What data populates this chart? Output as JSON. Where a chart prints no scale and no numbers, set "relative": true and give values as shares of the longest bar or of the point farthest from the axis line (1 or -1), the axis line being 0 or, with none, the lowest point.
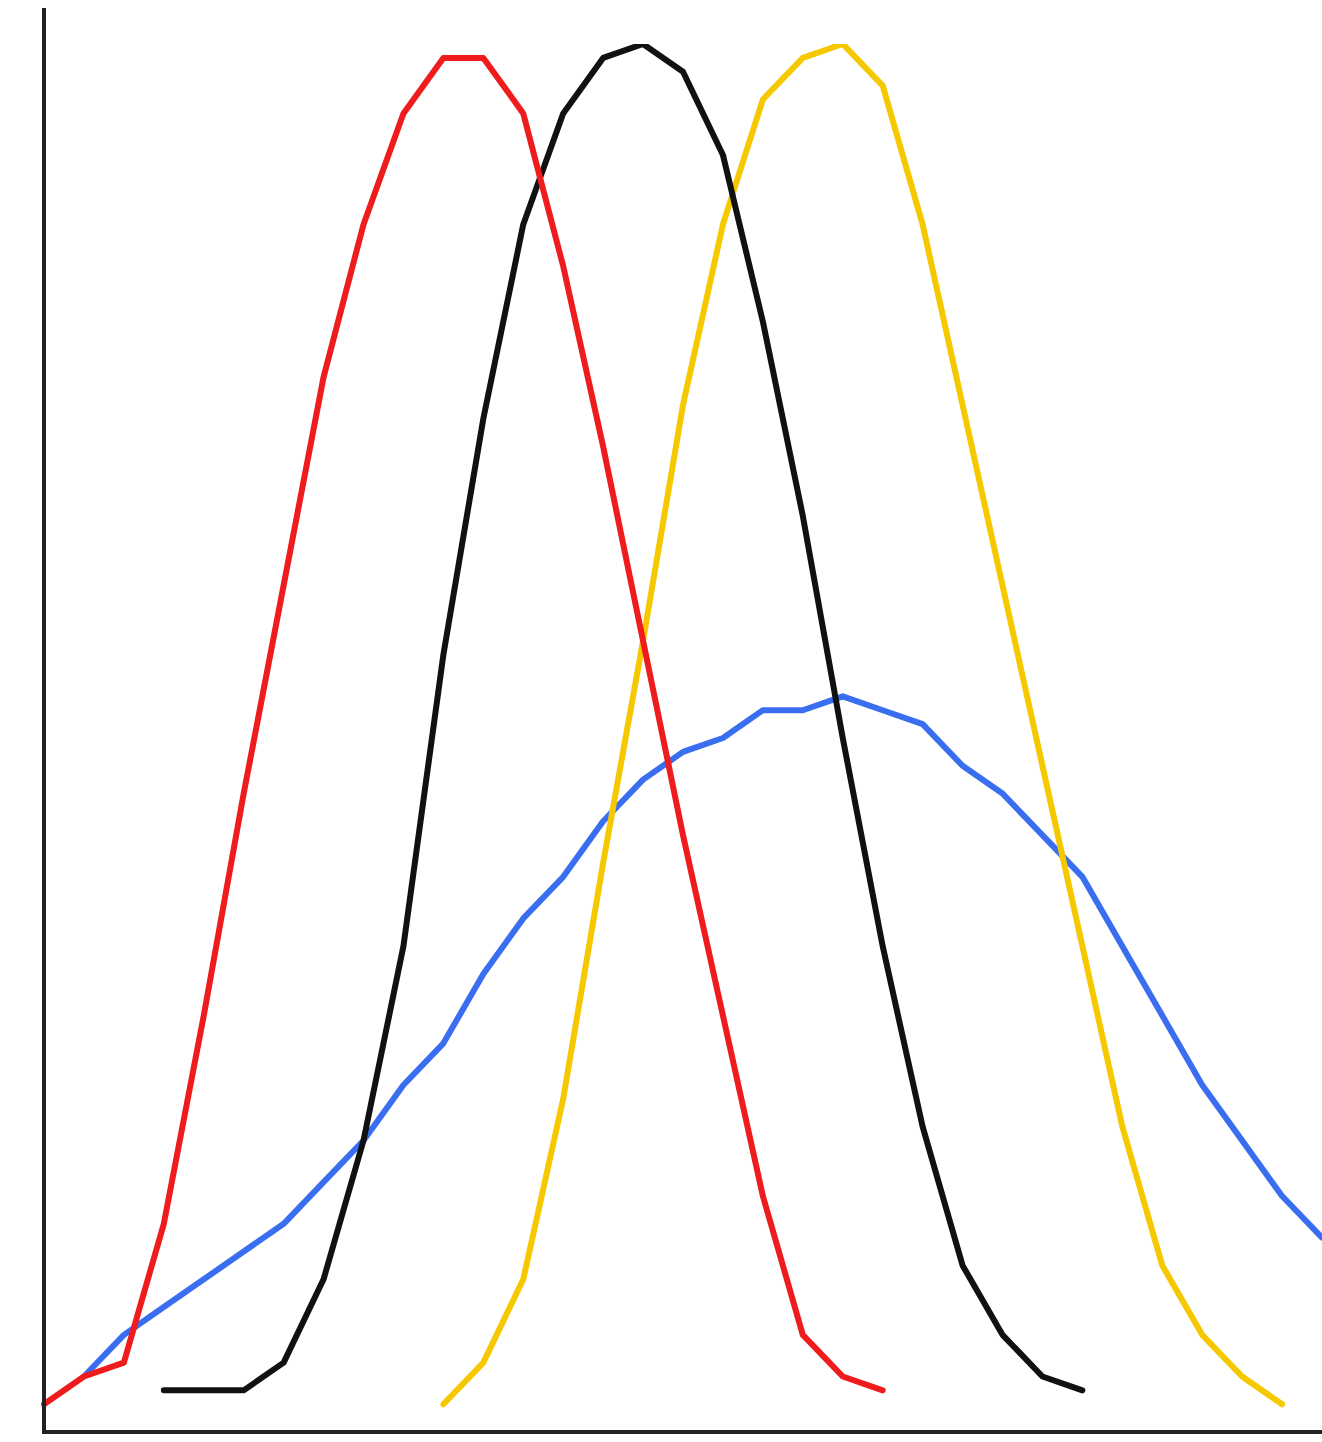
{
  "chart_data": {
    "type": "line",
    "relative": true,
    "marker": "none",
    "grid": false,
    "legend": false,
    "categories": [
      null,
      null,
      null,
      null,
      null,
      null,
      null,
      null,
      null,
      null,
      null,
      null,
      null,
      null,
      null,
      null,
      null,
      null,
      null,
      null,
      null,
      null,
      null,
      null,
      null,
      null,
      null,
      null,
      null,
      null,
      null,
      null,
      null
    ],
    "series": [
      {
        "color": "#ee1c1c",
        "values": [
          0.02,
          0.04,
          0.05,
          0.15,
          0.3,
          0.46,
          0.61,
          0.76,
          0.87,
          0.95,
          0.99,
          0.99,
          0.95,
          0.84,
          0.71,
          0.57,
          0.43,
          0.3,
          0.17,
          0.07,
          0.04,
          0.03,
          null,
          null,
          null,
          null,
          null,
          null,
          null,
          null,
          null,
          null,
          null
        ]
      },
      {
        "color": "#111111",
        "values": [
          null,
          null,
          null,
          0.03,
          0.03,
          0.03,
          0.05,
          0.11,
          0.21,
          0.35,
          0.56,
          0.73,
          0.87,
          0.95,
          0.99,
          1.0,
          0.98,
          0.92,
          0.8,
          0.66,
          0.5,
          0.35,
          0.22,
          0.12,
          0.07,
          0.04,
          0.03,
          null,
          null,
          null,
          null,
          null,
          null
        ]
      },
      {
        "color": "#f5c800",
        "values": [
          null,
          null,
          null,
          null,
          null,
          null,
          null,
          null,
          null,
          null,
          0.02,
          0.05,
          0.11,
          0.24,
          0.41,
          0.57,
          0.74,
          0.87,
          0.96,
          0.99,
          1.0,
          0.97,
          0.87,
          0.74,
          0.61,
          0.48,
          0.35,
          0.22,
          0.12,
          0.07,
          0.04,
          0.02,
          null
        ]
      },
      {
        "color": "#3a6ef0",
        "values": [
          null,
          0.04,
          0.07,
          0.09,
          0.11,
          0.13,
          0.15,
          0.18,
          0.21,
          0.25,
          0.28,
          0.33,
          0.37,
          0.4,
          0.44,
          0.47,
          0.49,
          0.5,
          0.52,
          0.52,
          0.53,
          0.52,
          0.51,
          0.48,
          0.46,
          0.43,
          0.4,
          0.35,
          0.3,
          0.25,
          0.21,
          0.17,
          0.14
        ]
      }
    ]
  }
}
